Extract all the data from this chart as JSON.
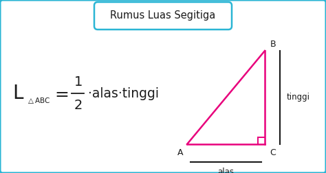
{
  "title": "Rumus Luas Segitiga",
  "title_border_color": "#2ab5d4",
  "background_color": "#ffffff",
  "outer_border_color": "#2ab5d4",
  "triangle_color": "#e8007c",
  "label_A": "A",
  "label_B": "B",
  "label_C": "C",
  "label_tinggi": "tinggi",
  "label_alas": "alas",
  "line_color": "#1a1a1a",
  "text_color": "#1a1a1a",
  "fig_width": 4.74,
  "fig_height": 2.52,
  "dpi": 100
}
